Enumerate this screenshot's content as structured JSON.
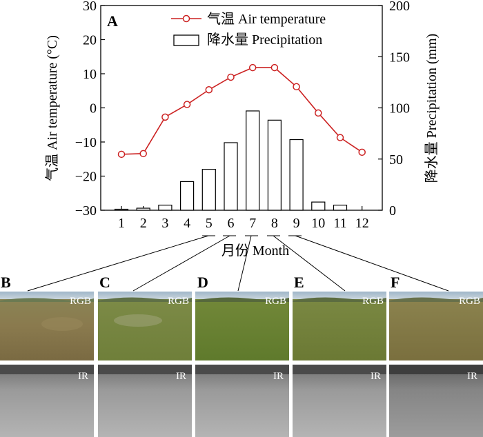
{
  "figure": {
    "chart_panel_letter": "A",
    "xlabel": "月份 Month",
    "photo_panels": [
      {
        "letter": "B",
        "month": 5,
        "rgb_label": "RGB",
        "ir_label": "IR"
      },
      {
        "letter": "C",
        "month": 6,
        "rgb_label": "RGB",
        "ir_label": "IR"
      },
      {
        "letter": "D",
        "month": 7,
        "rgb_label": "RGB",
        "ir_label": "IR"
      },
      {
        "letter": "E",
        "month": 8,
        "rgb_label": "RGB",
        "ir_label": "IR"
      },
      {
        "letter": "F",
        "month": 9,
        "rgb_label": "RGB",
        "ir_label": "IR"
      }
    ]
  },
  "chart_data": {
    "type": "bar+line",
    "categories": [
      "1",
      "2",
      "3",
      "4",
      "5",
      "6",
      "7",
      "8",
      "9",
      "10",
      "11",
      "12"
    ],
    "xlabel": "月份 Month",
    "y_left_label": "气温 Air temperature (°C)",
    "y_right_label": "降水量 Precipitation (mm)",
    "y_left_lim": [
      -30,
      30
    ],
    "y_left_ticks": [
      "30",
      "20",
      "10",
      "0",
      "−10",
      "−20",
      "−30"
    ],
    "y_right_lim": [
      0,
      200
    ],
    "y_right_ticks": [
      "200",
      "150",
      "100",
      "50",
      "0"
    ],
    "legend_position": "top-right",
    "series": [
      {
        "name": "气温 Air temperature",
        "kind": "line",
        "axis": "left",
        "color": "#cc2222",
        "values": [
          -13.6,
          -13.4,
          -2.7,
          1.0,
          5.3,
          9.0,
          11.8,
          11.8,
          6.2,
          -1.5,
          -8.7,
          -13.0
        ]
      },
      {
        "name": "降水量 Precipitation",
        "kind": "bar",
        "axis": "right",
        "color": "#000000",
        "values": [
          1.0,
          2.0,
          5.0,
          28.0,
          40.0,
          66.0,
          97.0,
          88.0,
          69.0,
          8.0,
          5.0,
          0.0
        ]
      }
    ]
  }
}
